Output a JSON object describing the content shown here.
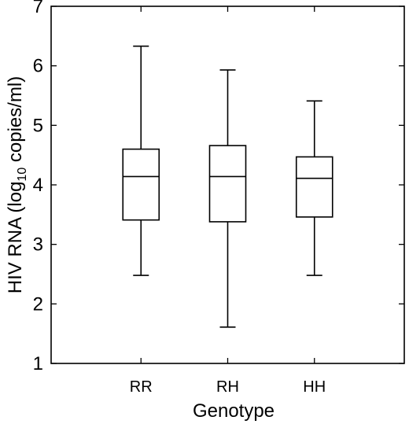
{
  "chart_data": {
    "type": "box",
    "title": "",
    "xlabel": "Genotype",
    "ylabel_main": "HIV RNA (log",
    "ylabel_sub": "10",
    "ylabel_tail": " copies/ml)",
    "ylim": [
      1,
      7
    ],
    "yticks": [
      1,
      2,
      3,
      4,
      5,
      6,
      7
    ],
    "categories": [
      "RR",
      "RH",
      "HH"
    ],
    "boxes": [
      {
        "category": "RR",
        "min": 2.48,
        "q1": 3.41,
        "median": 4.14,
        "q3": 4.6,
        "max": 6.33
      },
      {
        "category": "RH",
        "min": 1.61,
        "q1": 3.38,
        "median": 4.14,
        "q3": 4.66,
        "max": 5.93
      },
      {
        "category": "HH",
        "min": 2.48,
        "q1": 3.46,
        "median": 4.11,
        "q3": 4.47,
        "max": 5.41
      }
    ],
    "grid": false,
    "legend": "none"
  }
}
